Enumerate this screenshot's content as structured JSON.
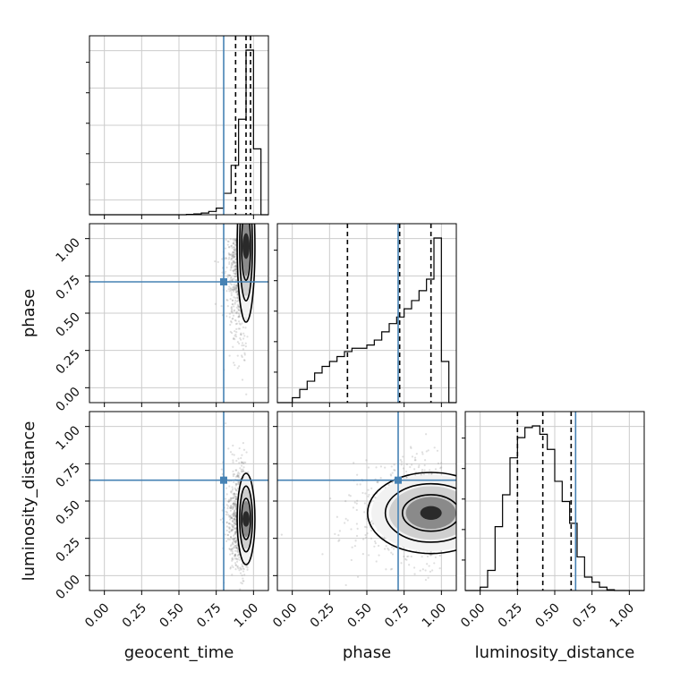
{
  "chart_data": {
    "type": "corner",
    "parameters": [
      "geocent_time",
      "phase",
      "luminosity_distance"
    ],
    "xlabels": [
      "geocent_time",
      "phase",
      "luminosity_distance"
    ],
    "ylabels": [
      "",
      "phase",
      "luminosity_distance"
    ],
    "tick_values": [
      0.0,
      0.25,
      0.5,
      0.75,
      1.0
    ],
    "tick_labels": [
      "0.00",
      "0.25",
      "0.50",
      "0.75",
      "1.00"
    ],
    "range": [
      -0.1,
      1.1
    ],
    "grid": true,
    "colors": {
      "truth": "#4682b4",
      "hist": "#000000",
      "quantile": "#000000",
      "sample": "#808080"
    },
    "truths": [
      0.8,
      0.71,
      0.64
    ],
    "quantiles": [
      [
        0.88,
        0.95,
        0.98
      ],
      [
        0.37,
        0.72,
        0.93
      ],
      [
        0.25,
        0.42,
        0.61
      ]
    ],
    "histograms": [
      {
        "bins": [
          -0.1,
          0.0,
          0.05,
          0.1,
          0.15,
          0.2,
          0.25,
          0.3,
          0.35,
          0.4,
          0.45,
          0.5,
          0.55,
          0.6,
          0.65,
          0.7,
          0.75,
          0.8,
          0.85,
          0.9,
          0.95,
          1.0,
          1.05,
          1.1
        ],
        "counts": [
          0,
          0,
          0,
          0,
          0,
          0,
          0,
          0,
          0,
          0,
          0,
          0,
          0.002,
          0.005,
          0.01,
          0.02,
          0.04,
          0.13,
          0.3,
          0.58,
          1.0,
          0.4,
          0
        ]
      },
      {
        "bins": [
          -0.1,
          0.0,
          0.05,
          0.1,
          0.15,
          0.2,
          0.25,
          0.3,
          0.35,
          0.4,
          0.45,
          0.5,
          0.55,
          0.6,
          0.65,
          0.7,
          0.75,
          0.8,
          0.85,
          0.9,
          0.95,
          1.0,
          1.05,
          1.1
        ],
        "counts": [
          0,
          0.03,
          0.08,
          0.13,
          0.18,
          0.22,
          0.25,
          0.28,
          0.31,
          0.33,
          0.33,
          0.35,
          0.38,
          0.43,
          0.48,
          0.52,
          0.57,
          0.62,
          0.68,
          0.75,
          1.0,
          0.25,
          0
        ]
      },
      {
        "bins": [
          -0.1,
          0.0,
          0.05,
          0.1,
          0.15,
          0.2,
          0.25,
          0.3,
          0.35,
          0.4,
          0.45,
          0.5,
          0.55,
          0.6,
          0.65,
          0.7,
          0.75,
          0.8,
          0.85,
          0.9,
          0.95,
          1.0,
          1.05,
          1.1
        ],
        "counts": [
          0,
          0.02,
          0.12,
          0.38,
          0.57,
          0.79,
          0.91,
          0.97,
          0.98,
          0.93,
          0.84,
          0.65,
          0.53,
          0.4,
          0.2,
          0.08,
          0.05,
          0.02,
          0.005,
          0,
          0,
          0,
          0
        ]
      }
    ],
    "pairs": [
      {
        "x": "geocent_time",
        "y": "phase",
        "density_center": [
          0.95,
          0.95
        ],
        "density_spread": [
          0.035,
          0.3
        ],
        "skew": "low-tail"
      },
      {
        "x": "geocent_time",
        "y": "luminosity_distance",
        "density_center": [
          0.95,
          0.38
        ],
        "density_spread": [
          0.035,
          0.18
        ],
        "skew": "none"
      },
      {
        "x": "phase",
        "y": "luminosity_distance",
        "density_center": [
          0.93,
          0.42
        ],
        "density_spread": [
          0.25,
          0.16
        ],
        "skew": "left-tail"
      }
    ]
  }
}
